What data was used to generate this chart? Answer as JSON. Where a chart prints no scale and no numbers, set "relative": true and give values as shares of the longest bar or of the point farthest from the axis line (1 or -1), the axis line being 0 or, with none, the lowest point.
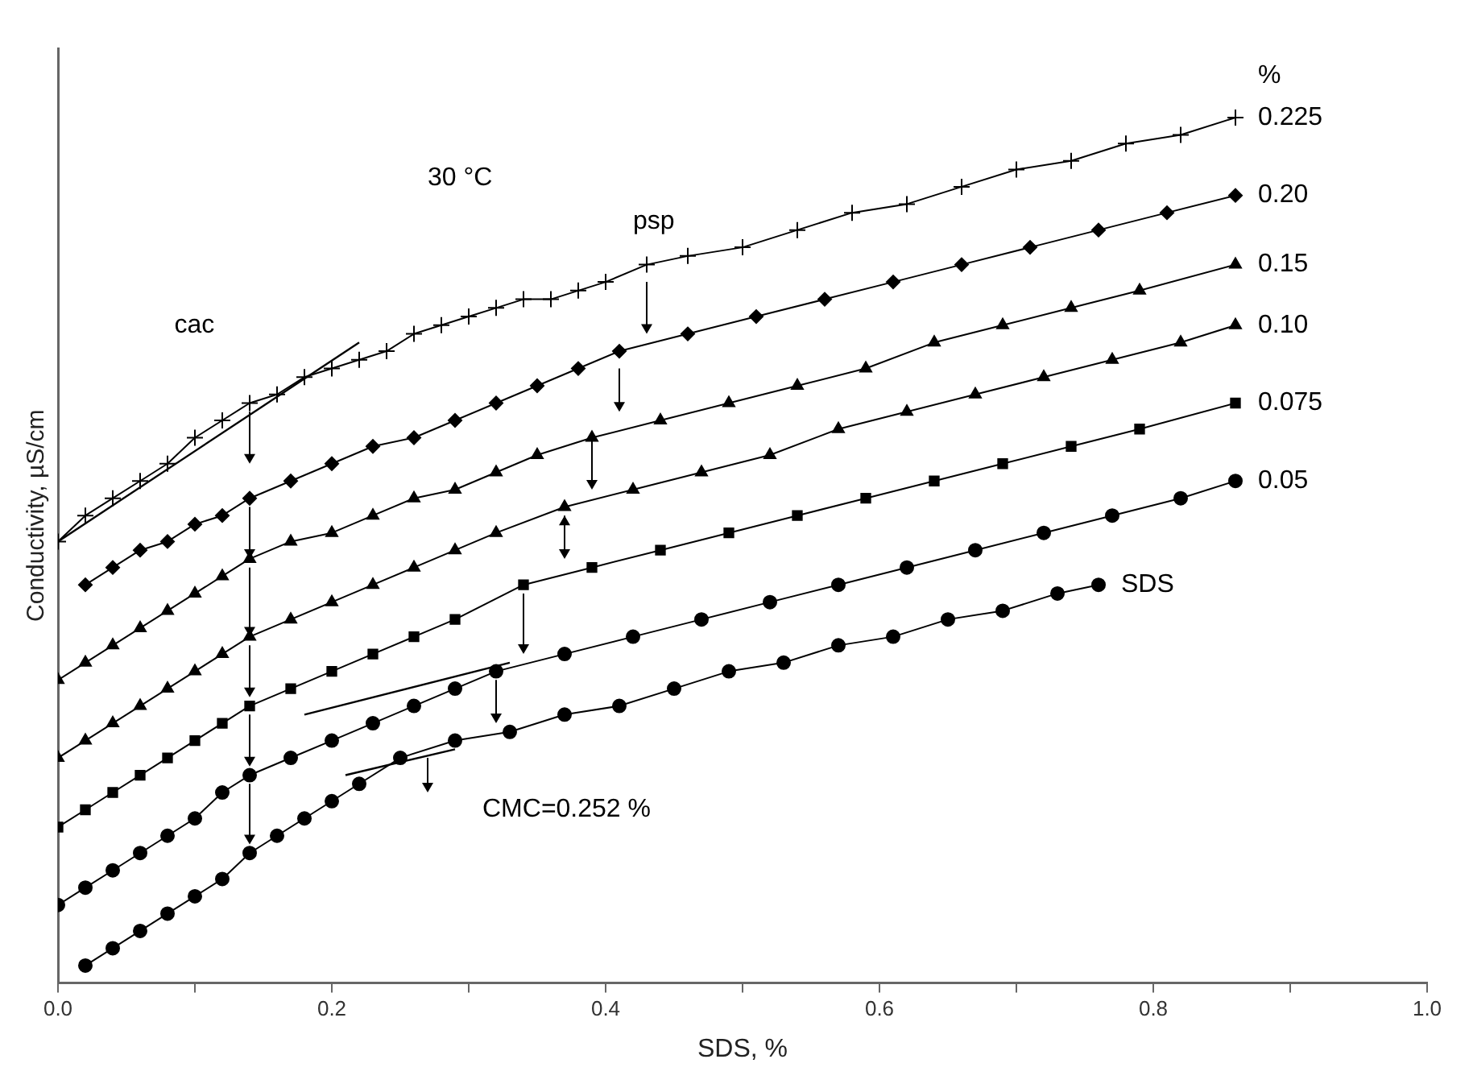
{
  "chart_data": {
    "type": "line",
    "relative": true,
    "xlabel": "SDS, %",
    "ylabel": "Conductivity, µS/cm",
    "legend_title": "%",
    "legend": false,
    "grid": false,
    "line_style": "solid",
    "xlim": [
      0,
      1
    ],
    "xticks": [
      {
        "value": 0,
        "label": "0.0"
      },
      {
        "value": 0.1,
        "label": null
      },
      {
        "value": 0.2,
        "label": "0.2"
      },
      {
        "value": 0.3,
        "label": null
      },
      {
        "value": 0.4,
        "label": "0.4"
      },
      {
        "value": 0.5,
        "label": null
      },
      {
        "value": 0.6,
        "label": "0.6"
      },
      {
        "value": 0.7,
        "label": null
      },
      {
        "value": 0.8,
        "label": "0.8"
      },
      {
        "value": 0.9,
        "label": null
      },
      {
        "value": 1,
        "label": "1.0"
      }
    ],
    "annotations": [
      "30 °C",
      "cac",
      "psp",
      "CMC=0.252 %"
    ],
    "series": [
      {
        "name": "0.225",
        "color": "#000000",
        "marker": "cross",
        "x": [
          0,
          0.02,
          0.04,
          0.06,
          0.08,
          0.1,
          0.12,
          0.14,
          0.16,
          0.18,
          0.2,
          0.22,
          0.24,
          0.26,
          0.28,
          0.3,
          0.32,
          0.34,
          0.36,
          0.38,
          0.4,
          0.43,
          0.46,
          0.5,
          0.54,
          0.58,
          0.62,
          0.66,
          0.7,
          0.74,
          0.78,
          0.82,
          0.86
        ],
        "values": [
          0.51,
          0.54,
          0.56,
          0.58,
          0.6,
          0.63,
          0.65,
          0.67,
          0.68,
          0.7,
          0.71,
          0.72,
          0.73,
          0.75,
          0.76,
          0.77,
          0.78,
          0.79,
          0.79,
          0.8,
          0.81,
          0.83,
          0.84,
          0.85,
          0.87,
          0.89,
          0.9,
          0.92,
          0.94,
          0.95,
          0.97,
          0.98,
          1
        ]
      },
      {
        "name": "0.20",
        "color": "#000000",
        "marker": "diamond",
        "x": [
          0.02,
          0.04,
          0.06,
          0.08,
          0.1,
          0.12,
          0.14,
          0.17,
          0.2,
          0.23,
          0.26,
          0.29,
          0.32,
          0.35,
          0.38,
          0.41,
          0.46,
          0.51,
          0.56,
          0.61,
          0.66,
          0.71,
          0.76,
          0.81,
          0.86
        ],
        "values": [
          0.46,
          0.48,
          0.5,
          0.51,
          0.53,
          0.54,
          0.56,
          0.58,
          0.6,
          0.62,
          0.63,
          0.65,
          0.67,
          0.69,
          0.71,
          0.73,
          0.75,
          0.77,
          0.79,
          0.81,
          0.83,
          0.85,
          0.87,
          0.89,
          0.91
        ]
      },
      {
        "name": "0.15",
        "color": "#000000",
        "marker": "triangle",
        "x": [
          0,
          0.02,
          0.04,
          0.06,
          0.08,
          0.1,
          0.12,
          0.14,
          0.17,
          0.2,
          0.23,
          0.26,
          0.29,
          0.32,
          0.35,
          0.39,
          0.44,
          0.49,
          0.54,
          0.59,
          0.64,
          0.69,
          0.74,
          0.79,
          0.86
        ],
        "values": [
          0.35,
          0.37,
          0.39,
          0.41,
          0.43,
          0.45,
          0.47,
          0.49,
          0.51,
          0.52,
          0.54,
          0.56,
          0.57,
          0.59,
          0.61,
          0.63,
          0.65,
          0.67,
          0.69,
          0.71,
          0.74,
          0.76,
          0.78,
          0.8,
          0.83
        ]
      },
      {
        "name": "0.10",
        "color": "#000000",
        "marker": "triangle",
        "x": [
          0,
          0.02,
          0.04,
          0.06,
          0.08,
          0.1,
          0.12,
          0.14,
          0.17,
          0.2,
          0.23,
          0.26,
          0.29,
          0.32,
          0.37,
          0.42,
          0.47,
          0.52,
          0.57,
          0.62,
          0.67,
          0.72,
          0.77,
          0.82,
          0.86
        ],
        "values": [
          0.26,
          0.28,
          0.3,
          0.32,
          0.34,
          0.36,
          0.38,
          0.4,
          0.42,
          0.44,
          0.46,
          0.48,
          0.5,
          0.52,
          0.55,
          0.57,
          0.59,
          0.61,
          0.64,
          0.66,
          0.68,
          0.7,
          0.72,
          0.74,
          0.76
        ]
      },
      {
        "name": "0.075",
        "color": "#000000",
        "marker": "square",
        "x": [
          0,
          0.02,
          0.04,
          0.06,
          0.08,
          0.1,
          0.12,
          0.14,
          0.17,
          0.2,
          0.23,
          0.26,
          0.29,
          0.34,
          0.39,
          0.44,
          0.49,
          0.54,
          0.59,
          0.64,
          0.69,
          0.74,
          0.79,
          0.86
        ],
        "values": [
          0.18,
          0.2,
          0.22,
          0.24,
          0.26,
          0.28,
          0.3,
          0.32,
          0.34,
          0.36,
          0.38,
          0.4,
          0.42,
          0.46,
          0.48,
          0.5,
          0.52,
          0.54,
          0.56,
          0.58,
          0.6,
          0.62,
          0.64,
          0.67
        ]
      },
      {
        "name": "0.05",
        "color": "#000000",
        "marker": "circle",
        "x": [
          0,
          0.02,
          0.04,
          0.06,
          0.08,
          0.1,
          0.12,
          0.14,
          0.17,
          0.2,
          0.23,
          0.26,
          0.29,
          0.32,
          0.37,
          0.42,
          0.47,
          0.52,
          0.57,
          0.62,
          0.67,
          0.72,
          0.77,
          0.82,
          0.86
        ],
        "values": [
          0.09,
          0.11,
          0.13,
          0.15,
          0.17,
          0.19,
          0.22,
          0.24,
          0.26,
          0.28,
          0.3,
          0.32,
          0.34,
          0.36,
          0.38,
          0.4,
          0.42,
          0.44,
          0.46,
          0.48,
          0.5,
          0.52,
          0.54,
          0.56,
          0.58
        ]
      },
      {
        "name": "SDS",
        "color": "#000000",
        "marker": "circle",
        "x": [
          0.02,
          0.04,
          0.06,
          0.08,
          0.1,
          0.12,
          0.14,
          0.16,
          0.18,
          0.2,
          0.22,
          0.25,
          0.29,
          0.33,
          0.37,
          0.41,
          0.45,
          0.49,
          0.53,
          0.57,
          0.61,
          0.65,
          0.69,
          0.73,
          0.76
        ],
        "values": [
          0.02,
          0.04,
          0.06,
          0.08,
          0.1,
          0.12,
          0.15,
          0.17,
          0.19,
          0.21,
          0.23,
          0.26,
          0.28,
          0.29,
          0.31,
          0.32,
          0.34,
          0.36,
          0.37,
          0.39,
          0.4,
          0.42,
          0.43,
          0.45,
          0.46
        ]
      },
      {
        "type": "line",
        "color": "#000000",
        "marker": "none",
        "x": [
          0,
          0.22
        ],
        "values": [
          0.51,
          0.74
        ]
      },
      {
        "type": "line",
        "color": "#000000",
        "marker": "none",
        "x": [
          0.18,
          0.33
        ],
        "values": [
          0.31,
          0.37
        ]
      },
      {
        "type": "line",
        "color": "#000000",
        "marker": "none",
        "x": [
          0.21,
          0.29
        ],
        "values": [
          0.24,
          0.27
        ]
      }
    ]
  }
}
